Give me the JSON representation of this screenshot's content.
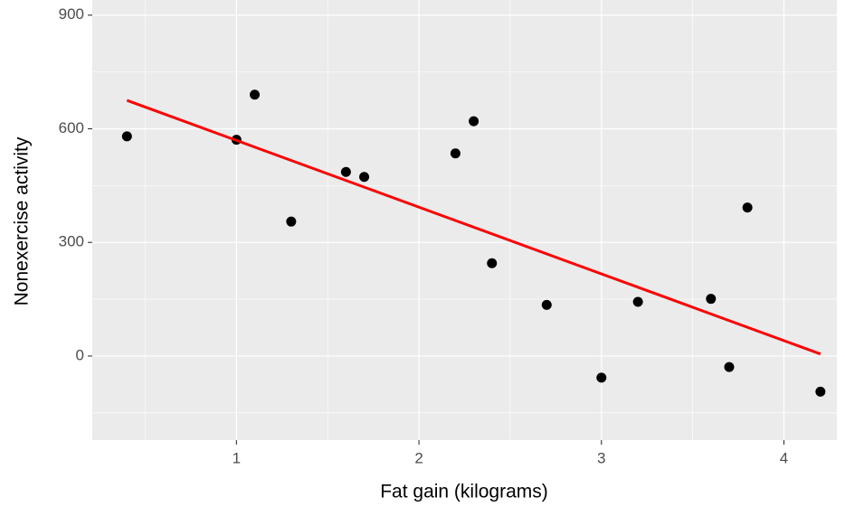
{
  "chart_data": {
    "type": "scatter",
    "x_label": "Fat gain (kilograms)",
    "y_label": "Nonexercise activity",
    "x": [
      4.2,
      3.0,
      3.7,
      2.7,
      3.2,
      3.6,
      2.4,
      1.3,
      3.8,
      1.7,
      1.6,
      2.2,
      1.0,
      0.4,
      2.3,
      1.1
    ],
    "values": [
      -94,
      -57,
      -29,
      135,
      143,
      151,
      245,
      355,
      392,
      473,
      486,
      535,
      571,
      580,
      620,
      690
    ],
    "color": "#000000",
    "fit": {
      "x": [
        0.4,
        4.2
      ],
      "values": [
        675.0,
        5.4
      ],
      "color": "#ff0000"
    },
    "xlim": [
      0.21,
      4.29
    ],
    "ylim": [
      -222,
      940
    ],
    "xticks": [
      1,
      2,
      3,
      4
    ],
    "yticks": [
      0,
      300,
      600,
      900
    ],
    "x_minor_ticks": [
      0.5,
      1.5,
      2.5,
      3.5
    ],
    "y_minor_ticks": [
      -150,
      150,
      450,
      750
    ],
    "grid": true,
    "panel_color": "#ebebeb"
  }
}
